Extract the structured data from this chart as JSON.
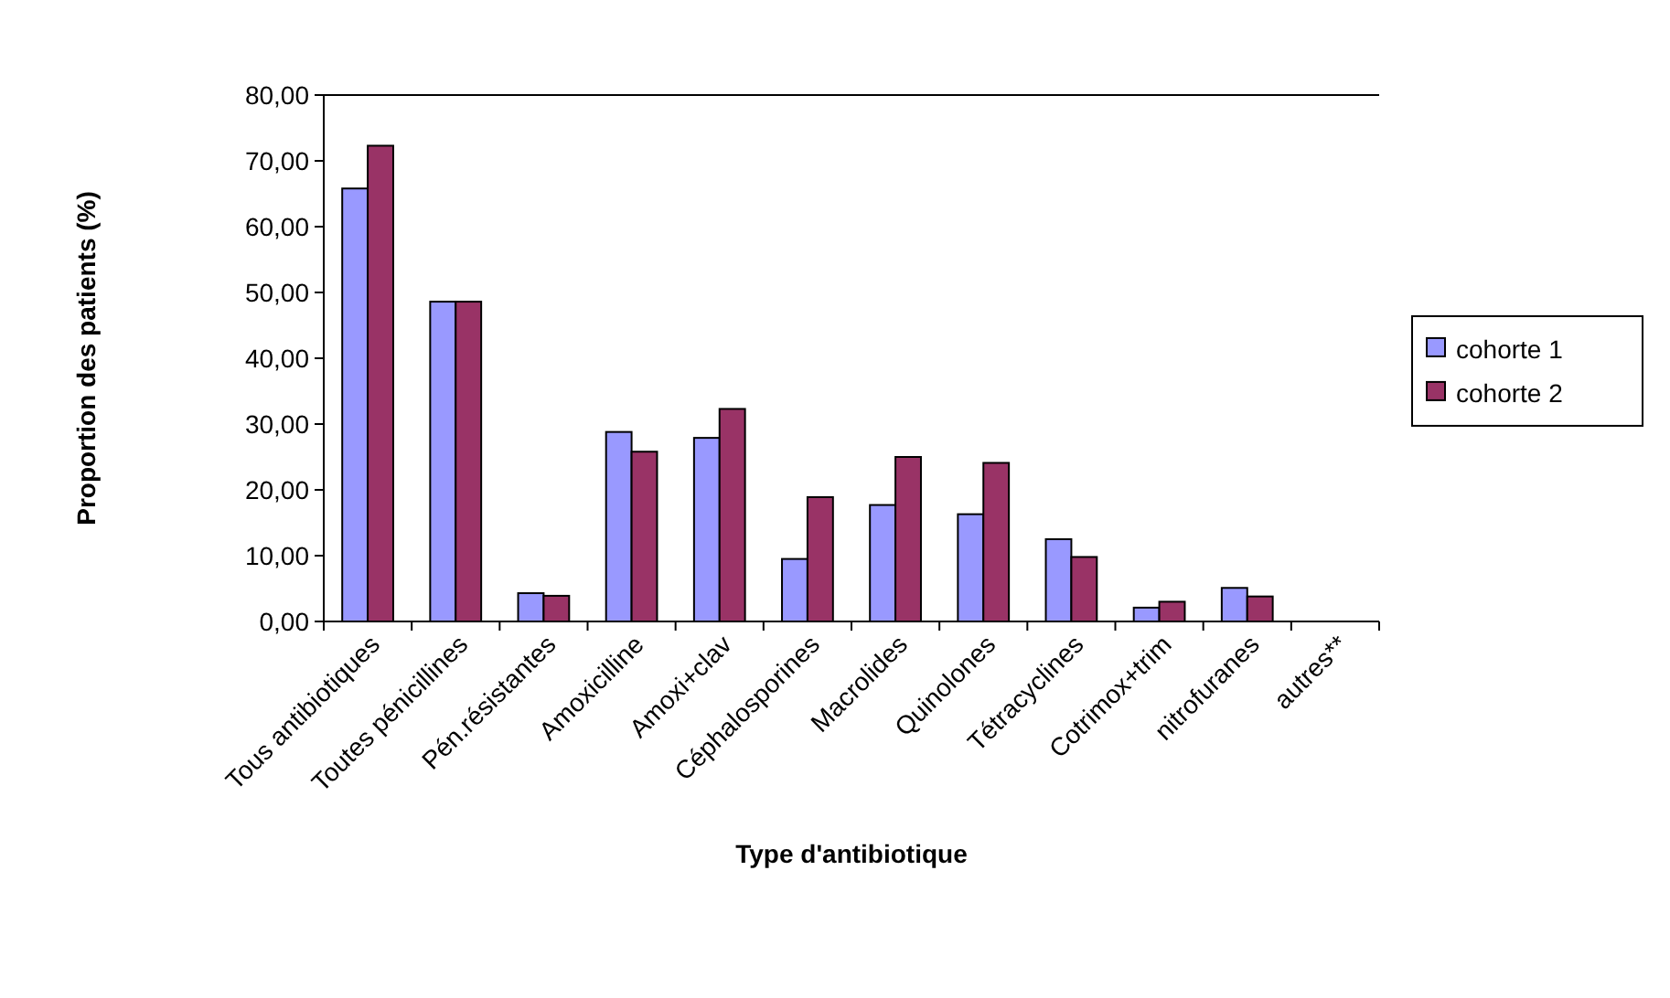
{
  "chart_data": {
    "type": "bar",
    "xlabel": "Type d'antibiotique",
    "ylabel": "Proportion des patients (%)",
    "categories": [
      "Tous antibiotiques",
      "Toutes pénicillines",
      "Pén.résistantes",
      "Amoxicilline",
      "Amoxi+clav",
      "Céphalosporines",
      "Macrolides",
      "Quinolones",
      "Tétracyclines",
      "Cotrimox+trim",
      "nitrofuranes",
      "autres**"
    ],
    "series": [
      {
        "name": "cohorte 1",
        "color": "#9999ff",
        "values": [
          65.8,
          48.6,
          4.3,
          28.8,
          27.9,
          9.5,
          17.7,
          16.3,
          12.5,
          2.1,
          5.1,
          0
        ]
      },
      {
        "name": "cohorte 2",
        "color": "#993366",
        "values": [
          72.3,
          48.6,
          3.9,
          25.8,
          32.3,
          18.9,
          25.0,
          24.1,
          9.8,
          3.0,
          3.8,
          0
        ]
      }
    ],
    "ylim": [
      0,
      80
    ],
    "yticks": [
      {
        "value": 0,
        "label": "0,00"
      },
      {
        "value": 10,
        "label": "10,00"
      },
      {
        "value": 20,
        "label": "20,00"
      },
      {
        "value": 30,
        "label": "30,00"
      },
      {
        "value": 40,
        "label": "40,00"
      },
      {
        "value": 50,
        "label": "50,00"
      },
      {
        "value": 60,
        "label": "60,00"
      },
      {
        "value": 70,
        "label": "70,00"
      },
      {
        "value": 80,
        "label": "80,00"
      }
    ],
    "grid": false,
    "legend": "right"
  }
}
